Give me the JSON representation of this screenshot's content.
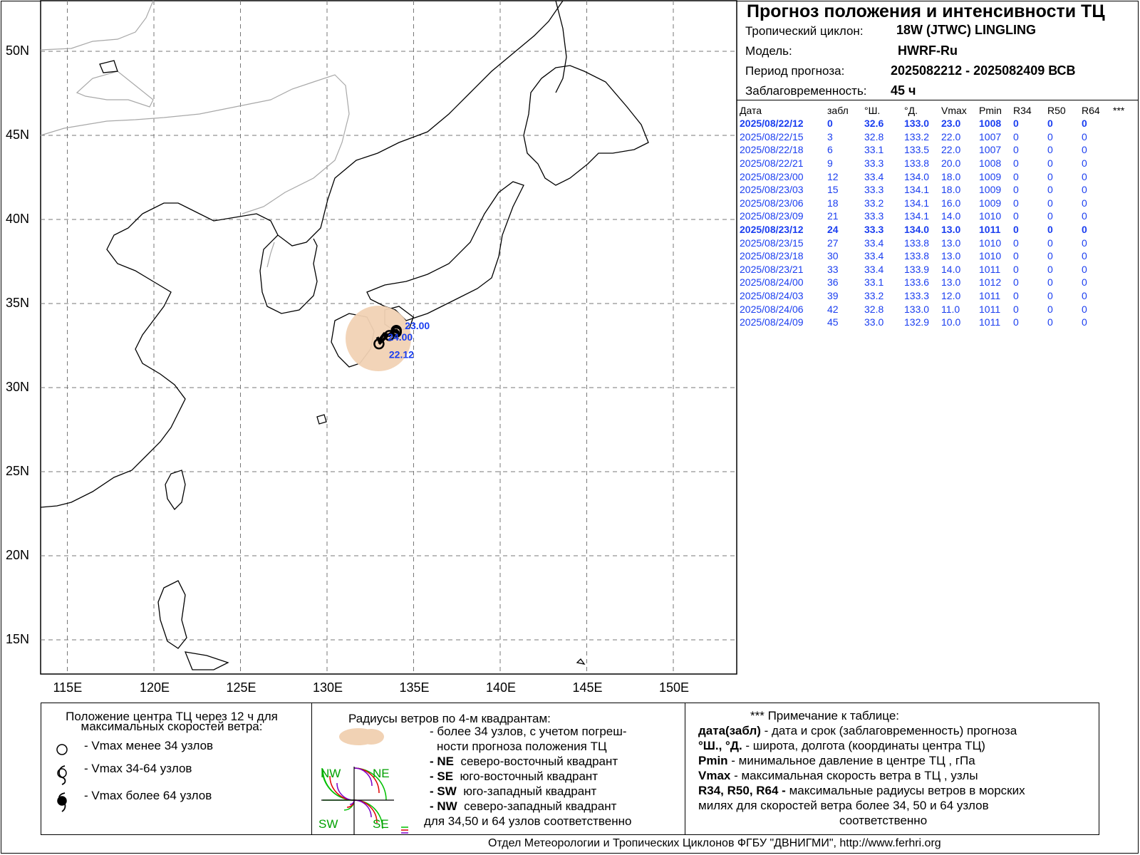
{
  "header": {
    "title": "Прогноз положения и интенсивности ТЦ",
    "cyclone_label": "Тропический циклон:",
    "cyclone_value": "18W (JTWC)  LINGLING",
    "model_label": "Модель:",
    "model_value": "HWRF-Ru",
    "period_label": "Период прогноза:",
    "period_value": "2025082212 - 2025082409 ВСВ",
    "lead_label": "Заблаговременность:",
    "lead_value": "45 ч"
  },
  "table": {
    "columns": [
      "Дата",
      "забл",
      "°Ш.",
      "°Д.",
      "Vmax",
      "Pmin",
      "R34",
      "R50",
      "R64",
      "***"
    ],
    "rows": [
      [
        "2025/08/22/12",
        "0",
        "32.6",
        "133.0",
        "23.0",
        "1008",
        "0",
        "0",
        "0"
      ],
      [
        "2025/08/22/15",
        "3",
        "32.8",
        "133.2",
        "22.0",
        "1007",
        "0",
        "0",
        "0"
      ],
      [
        "2025/08/22/18",
        "6",
        "33.1",
        "133.5",
        "22.0",
        "1007",
        "0",
        "0",
        "0"
      ],
      [
        "2025/08/22/21",
        "9",
        "33.3",
        "133.8",
        "20.0",
        "1008",
        "0",
        "0",
        "0"
      ],
      [
        "2025/08/23/00",
        "12",
        "33.4",
        "134.0",
        "18.0",
        "1009",
        "0",
        "0",
        "0"
      ],
      [
        "2025/08/23/03",
        "15",
        "33.3",
        "134.1",
        "18.0",
        "1009",
        "0",
        "0",
        "0"
      ],
      [
        "2025/08/23/06",
        "18",
        "33.2",
        "134.1",
        "16.0",
        "1009",
        "0",
        "0",
        "0"
      ],
      [
        "2025/08/23/09",
        "21",
        "33.3",
        "134.1",
        "14.0",
        "1010",
        "0",
        "0",
        "0"
      ],
      [
        "2025/08/23/12",
        "24",
        "33.3",
        "134.0",
        "13.0",
        "1011",
        "0",
        "0",
        "0"
      ],
      [
        "2025/08/23/15",
        "27",
        "33.4",
        "133.8",
        "13.0",
        "1010",
        "0",
        "0",
        "0"
      ],
      [
        "2025/08/23/18",
        "30",
        "33.4",
        "133.8",
        "13.0",
        "1010",
        "0",
        "0",
        "0"
      ],
      [
        "2025/08/23/21",
        "33",
        "33.4",
        "133.9",
        "14.0",
        "1011",
        "0",
        "0",
        "0"
      ],
      [
        "2025/08/24/00",
        "36",
        "33.1",
        "133.6",
        "13.0",
        "1012",
        "0",
        "0",
        "0"
      ],
      [
        "2025/08/24/03",
        "39",
        "33.2",
        "133.3",
        "12.0",
        "1011",
        "0",
        "0",
        "0"
      ],
      [
        "2025/08/24/06",
        "42",
        "32.8",
        "133.0",
        "11.0",
        "1011",
        "0",
        "0",
        "0"
      ],
      [
        "2025/08/24/09",
        "45",
        "33.0",
        "132.9",
        "10.0",
        "1011",
        "0",
        "0",
        "0"
      ]
    ],
    "bold_rows": [
      0,
      8
    ]
  },
  "map": {
    "lon_ticks": [
      "115E",
      "120E",
      "125E",
      "130E",
      "135E",
      "140E",
      "145E",
      "150E"
    ],
    "lat_ticks": [
      "50N",
      "45N",
      "40N",
      "35N",
      "30N",
      "25N",
      "20N",
      "15N"
    ],
    "track_labels": [
      "23.00",
      "24.00",
      "22.12"
    ],
    "colors": {
      "track_label": "#1a3ef0",
      "uncertainty": "#f1d2b4",
      "coast": "#000000",
      "border": "#a0a0a0"
    }
  },
  "legend": {
    "left_title": "Положение центра ТЦ через 12 ч для максимальных скоростей ветра:",
    "left_items": [
      "- Vmax  менее 34 узлов",
      "- Vmax  34-64 узлов",
      "- Vmax  более 64 узлов"
    ],
    "mid_title": "Радиусы ветров по 4-м квадрантам:",
    "mid_line1": "- более 34 узлов, с учетом погреш-",
    "mid_line2": "ности прогноза положения ТЦ",
    "mid_items": [
      {
        "code": "- NE",
        "text": "северо-восточный квадрант"
      },
      {
        "code": "- SE",
        "text": "юго-восточный квадрант"
      },
      {
        "code": "- SW",
        "text": "юго-западный квадрант"
      },
      {
        "code": "- NW",
        "text": "северо-западный квадрант"
      }
    ],
    "mid_last": "для 34,50 и 64 узлов соответственно",
    "quad_labels": [
      "NW",
      "NE",
      "SW",
      "SE"
    ],
    "right_title": "*** Примечание к таблице:",
    "right_items": [
      {
        "term": "дата(забл)",
        "text": " - дата и срок (заблаговременность) прогноза"
      },
      {
        "term": "°Ш., °Д.",
        "text": " - широта, долгота   (координаты центра ТЦ)"
      },
      {
        "term": "Pmin",
        "text": "  - минимальное давление в центре ТЦ , гПа"
      },
      {
        "term": "Vmax",
        "text": "   -  максимальная скорость ветра в ТЦ , узлы"
      },
      {
        "term": "R34, R50, R64 -",
        "text": "  максимальные радиусы ветров в морских"
      }
    ],
    "right_line6": "милях для скоростей ветра более 34, 50 и 64 узлов",
    "right_line7": "соответственно"
  },
  "footer": "Отдел Метеорологии и Тропических Циклонов ФГБУ \"ДВНИГМИ\",  http://www.ferhri.org"
}
